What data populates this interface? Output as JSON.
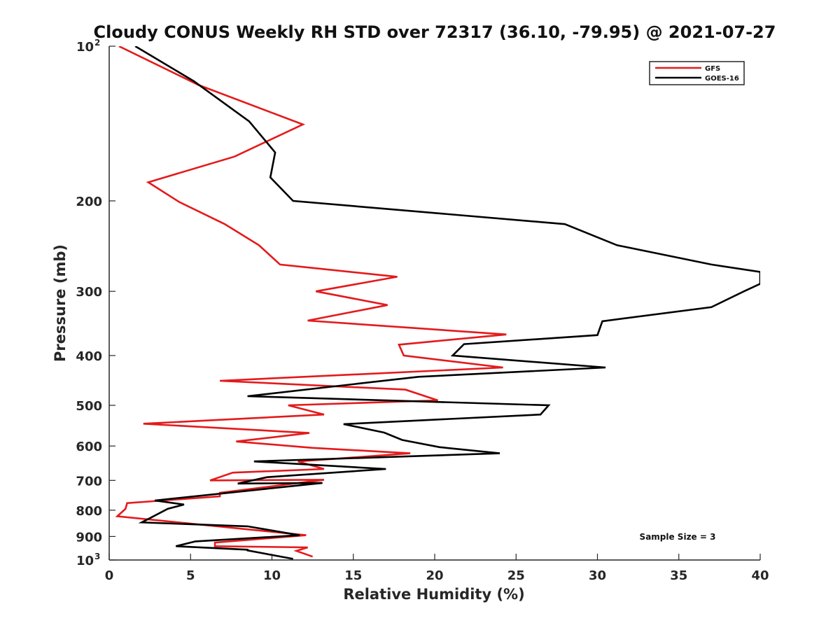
{
  "chart_data": {
    "type": "line",
    "title": "Cloudy CONUS Weekly RH STD over 72317 (36.10, -79.95) @ 2021-07-27",
    "xlabel": "Relative Humidity (%)",
    "ylabel": "Pressure (mb)",
    "xlim": [
      0,
      40
    ],
    "ylim": [
      100,
      1000
    ],
    "yscale": "log",
    "y_reversed": true,
    "grid": false,
    "legend": "top-right",
    "x_ticks": [
      "0",
      "5",
      "10",
      "15",
      "20",
      "25",
      "30",
      "35",
      "40"
    ],
    "y_ticks": [
      {
        "value": 100,
        "label": "10",
        "exp": "2"
      },
      {
        "value": 200,
        "label": "200",
        "exp": ""
      },
      {
        "value": 300,
        "label": "300",
        "exp": ""
      },
      {
        "value": 400,
        "label": "400",
        "exp": ""
      },
      {
        "value": 500,
        "label": "500",
        "exp": ""
      },
      {
        "value": 600,
        "label": "600",
        "exp": ""
      },
      {
        "value": 700,
        "label": "700",
        "exp": ""
      },
      {
        "value": 800,
        "label": "800",
        "exp": ""
      },
      {
        "value": 900,
        "label": "900",
        "exp": ""
      },
      {
        "value": 1000,
        "label": "10",
        "exp": "3"
      }
    ],
    "annotation": "Sample Size = 3",
    "series": [
      {
        "name": "GFS",
        "color": "#e41a1c",
        "points": [
          [
            0.6,
            100
          ],
          [
            5.5,
            119
          ],
          [
            11.9,
            142
          ],
          [
            7.7,
            164
          ],
          [
            2.4,
            184
          ],
          [
            4.3,
            201
          ],
          [
            7.1,
            222
          ],
          [
            9.2,
            244
          ],
          [
            10.5,
            266
          ],
          [
            17.7,
            281
          ],
          [
            12.7,
            300
          ],
          [
            17.1,
            319
          ],
          [
            12.2,
            342
          ],
          [
            24.4,
            364
          ],
          [
            17.8,
            381
          ],
          [
            18.1,
            400
          ],
          [
            24.2,
            422
          ],
          [
            6.8,
            448
          ],
          [
            18.2,
            466
          ],
          [
            20.2,
            489
          ],
          [
            11.0,
            500
          ],
          [
            13.2,
            521
          ],
          [
            2.1,
            543
          ],
          [
            12.3,
            566
          ],
          [
            7.8,
            588
          ],
          [
            12.5,
            605
          ],
          [
            18.5,
            620
          ],
          [
            11.6,
            643
          ],
          [
            13.2,
            665
          ],
          [
            7.6,
            676
          ],
          [
            6.2,
            700
          ],
          [
            13.2,
            698
          ],
          [
            6.8,
            740
          ],
          [
            6.8,
            752
          ],
          [
            1.1,
            775
          ],
          [
            1.0,
            795
          ],
          [
            0.5,
            822
          ],
          [
            12.1,
            895
          ],
          [
            6.5,
            925
          ],
          [
            6.5,
            940
          ],
          [
            12.2,
            945
          ],
          [
            11.5,
            960
          ],
          [
            12.5,
            985
          ]
        ]
      },
      {
        "name": "GOES-16",
        "color": "#000000",
        "points": [
          [
            1.6,
            100
          ],
          [
            5.2,
            117
          ],
          [
            8.6,
            140
          ],
          [
            10.2,
            161
          ],
          [
            9.9,
            180
          ],
          [
            11.3,
            200
          ],
          [
            28.0,
            222
          ],
          [
            31.2,
            244
          ],
          [
            37.0,
            266
          ],
          [
            40.0,
            275
          ],
          [
            40.0,
            290
          ],
          [
            39.0,
            300
          ],
          [
            37.0,
            322
          ],
          [
            30.3,
            343
          ],
          [
            30.0,
            365
          ],
          [
            21.8,
            380
          ],
          [
            21.1,
            400
          ],
          [
            30.5,
            422
          ],
          [
            19.0,
            440
          ],
          [
            8.5,
            480
          ],
          [
            27.0,
            500
          ],
          [
            26.5,
            521
          ],
          [
            14.4,
            544
          ],
          [
            16.9,
            565
          ],
          [
            18.0,
            584
          ],
          [
            20.3,
            603
          ],
          [
            24.0,
            620
          ],
          [
            8.9,
            643
          ],
          [
            17.0,
            665
          ],
          [
            9.7,
            690
          ],
          [
            7.9,
            710
          ],
          [
            13.1,
            708
          ],
          [
            2.8,
            766
          ],
          [
            4.6,
            780
          ],
          [
            3.6,
            795
          ],
          [
            2.0,
            845
          ],
          [
            8.5,
            860
          ],
          [
            11.7,
            895
          ],
          [
            5.3,
            920
          ],
          [
            4.1,
            940
          ],
          [
            8.5,
            955
          ],
          [
            8.5,
            958
          ],
          [
            11.3,
            995
          ]
        ]
      }
    ]
  }
}
